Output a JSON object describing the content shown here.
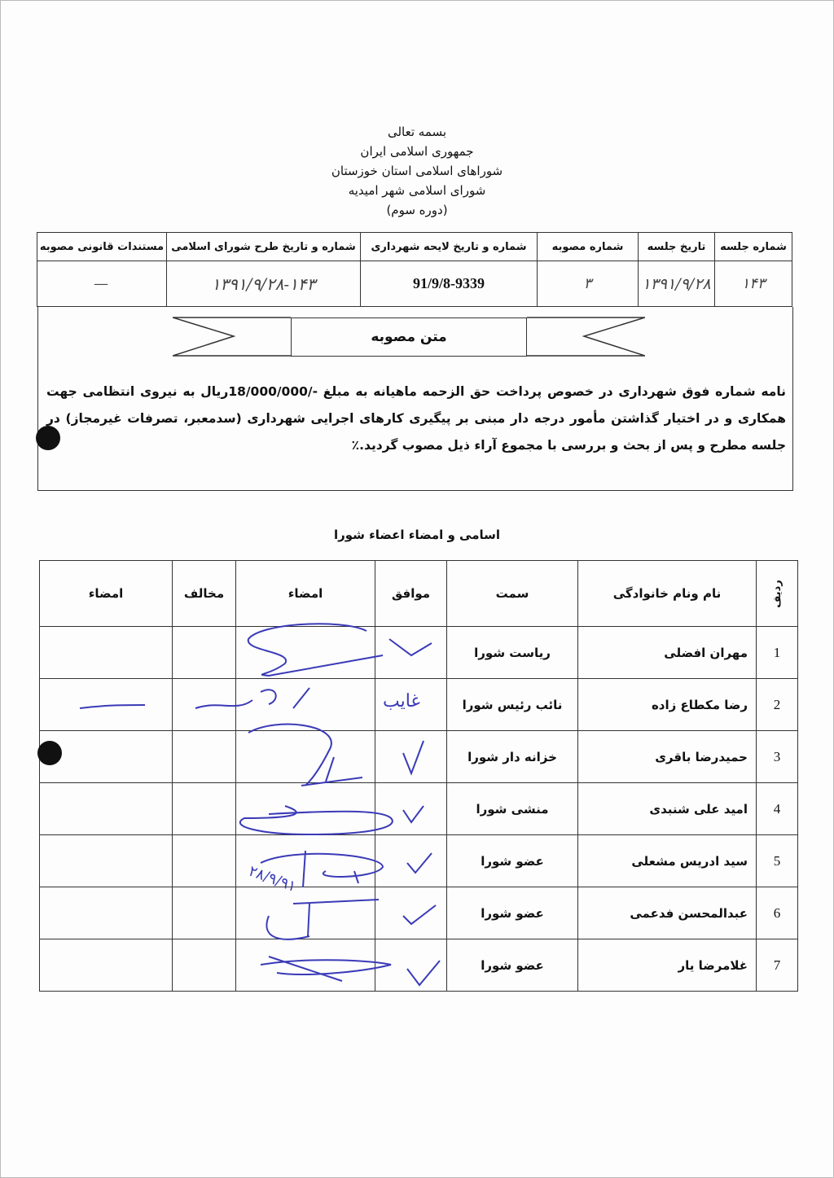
{
  "header": {
    "lines": [
      "بسمه تعالی",
      "جمهوری اسلامی ایران",
      "شوراهای اسلامی استان خوزستان",
      "شورای اسلامی شهر امیدیه",
      "(دوره سوم)"
    ]
  },
  "session_table": {
    "headers": [
      "شماره جلسه",
      "تاریخ جلسه",
      "شماره مصوبه",
      "شماره و تاریخ  لایحه شهرداری",
      "شماره و تاریخ طرح شورای اسلامی",
      "مستندات قانونی مصوبه"
    ],
    "values": [
      "۱۴۳",
      "۱۳۹۱/۹/۲۸",
      "۳",
      "91/9/8-9339",
      "۱۳۹۱/۹/۲۸-۱۴۳",
      "—"
    ]
  },
  "resolution": {
    "title": "متن مصوبه",
    "text": "نامه شماره فوق شهرداری در خصوص پرداخت حق الزحمه ماهیانه به مبلغ -/18/000/000ریال به نیروی انتظامی جهت همکاری و در اختیار گذاشتن مأمور درجه دار مبنی بر پیگیری کارهای اجرایی شهرداری (سدمعبر، تصرفات غیرمجاز) در جلسه مطرح و پس از  بحث و بررسی با مجموع آراء ذیل مصوب گردید.٪"
  },
  "members": {
    "title": "اسامی و امضاء اعضاء شورا",
    "headers": [
      "ردیف",
      "نام ونام خانوادگی",
      "سمت",
      "موافق",
      "امضاء",
      "مخالف",
      "امضاء"
    ],
    "rows": [
      {
        "no": "1",
        "name": "مهران افضلی",
        "role": "ریاست شورا",
        "agree": "✓"
      },
      {
        "no": "2",
        "name": "رضا مکطاع زاده",
        "role": "نائب رئیس شورا",
        "agree": "غایب"
      },
      {
        "no": "3",
        "name": "حمیدرضا باقری",
        "role": "خزانه دار شورا",
        "agree": "✓"
      },
      {
        "no": "4",
        "name": "امید علی شنبدی",
        "role": "منشی شورا",
        "agree": "✓"
      },
      {
        "no": "5",
        "name": "سید ادریس مشعلی",
        "role": "عضو شورا",
        "agree": "✓"
      },
      {
        "no": "6",
        "name": "عبدالمحسن فدعمی",
        "role": "عضو شورا",
        "agree": "✓"
      },
      {
        "no": "7",
        "name": "غلامرضا یار",
        "role": "عضو شورا",
        "agree": "✓"
      }
    ],
    "handwritten_notes": {
      "absent_sign": "غایب",
      "date_note": "۲۸/۹/۹۱"
    }
  },
  "colors": {
    "ink": "#3a3ab8",
    "text": "#111111"
  }
}
